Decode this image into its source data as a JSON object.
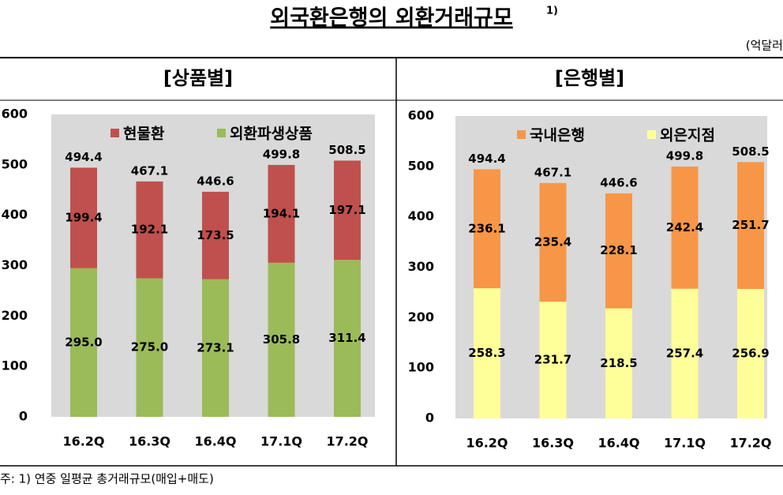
{
  "title": "외국환은행의 외환거래규모",
  "title_note": "1)",
  "unit": "(억달러",
  "footnote": "주: 1) 연중 일평균 총거래규모(매입+매도)",
  "chart_data": [
    {
      "type": "bar",
      "stacked": true,
      "title": "[상품별]",
      "categories": [
        "16.2Q",
        "16.3Q",
        "16.4Q",
        "17.1Q",
        "17.2Q"
      ],
      "series": [
        {
          "name": "외환파생상품",
          "color": "#9bbb59",
          "values": [
            295.0,
            275.0,
            273.1,
            305.8,
            311.4
          ],
          "value_labels": [
            "295.0",
            "275.0",
            "273.1",
            "305.8",
            "311.4"
          ]
        },
        {
          "name": "현물환",
          "color": "#c0504d",
          "values": [
            199.4,
            192.1,
            173.5,
            194.1,
            197.1
          ],
          "value_labels": [
            "199.4",
            "192.1",
            "173.5",
            "194.1",
            "197.1"
          ]
        }
      ],
      "totals": [
        494.4,
        467.1,
        446.6,
        499.8,
        508.5
      ],
      "ylim": [
        0,
        600
      ],
      "yticks": [
        0,
        100,
        200,
        300,
        400,
        500,
        600
      ],
      "grid": false,
      "legend": "top"
    },
    {
      "type": "bar",
      "stacked": true,
      "title": "[은행별]",
      "categories": [
        "16.2Q",
        "16.3Q",
        "16.4Q",
        "17.1Q",
        "17.2Q"
      ],
      "series": [
        {
          "name": "외은지점",
          "color": "#ffff99",
          "values": [
            258.3,
            231.7,
            218.5,
            257.4,
            256.9
          ]
        },
        {
          "name": "국내은행",
          "color": "#f79646",
          "values": [
            236.1,
            235.4,
            228.1,
            242.4,
            251.7
          ]
        }
      ],
      "totals": [
        494.4,
        467.1,
        446.6,
        499.8,
        508.5
      ],
      "ylim": [
        0,
        600
      ],
      "yticks": [
        0,
        100,
        200,
        300,
        400,
        500,
        600
      ],
      "grid": false,
      "legend": "top"
    }
  ]
}
